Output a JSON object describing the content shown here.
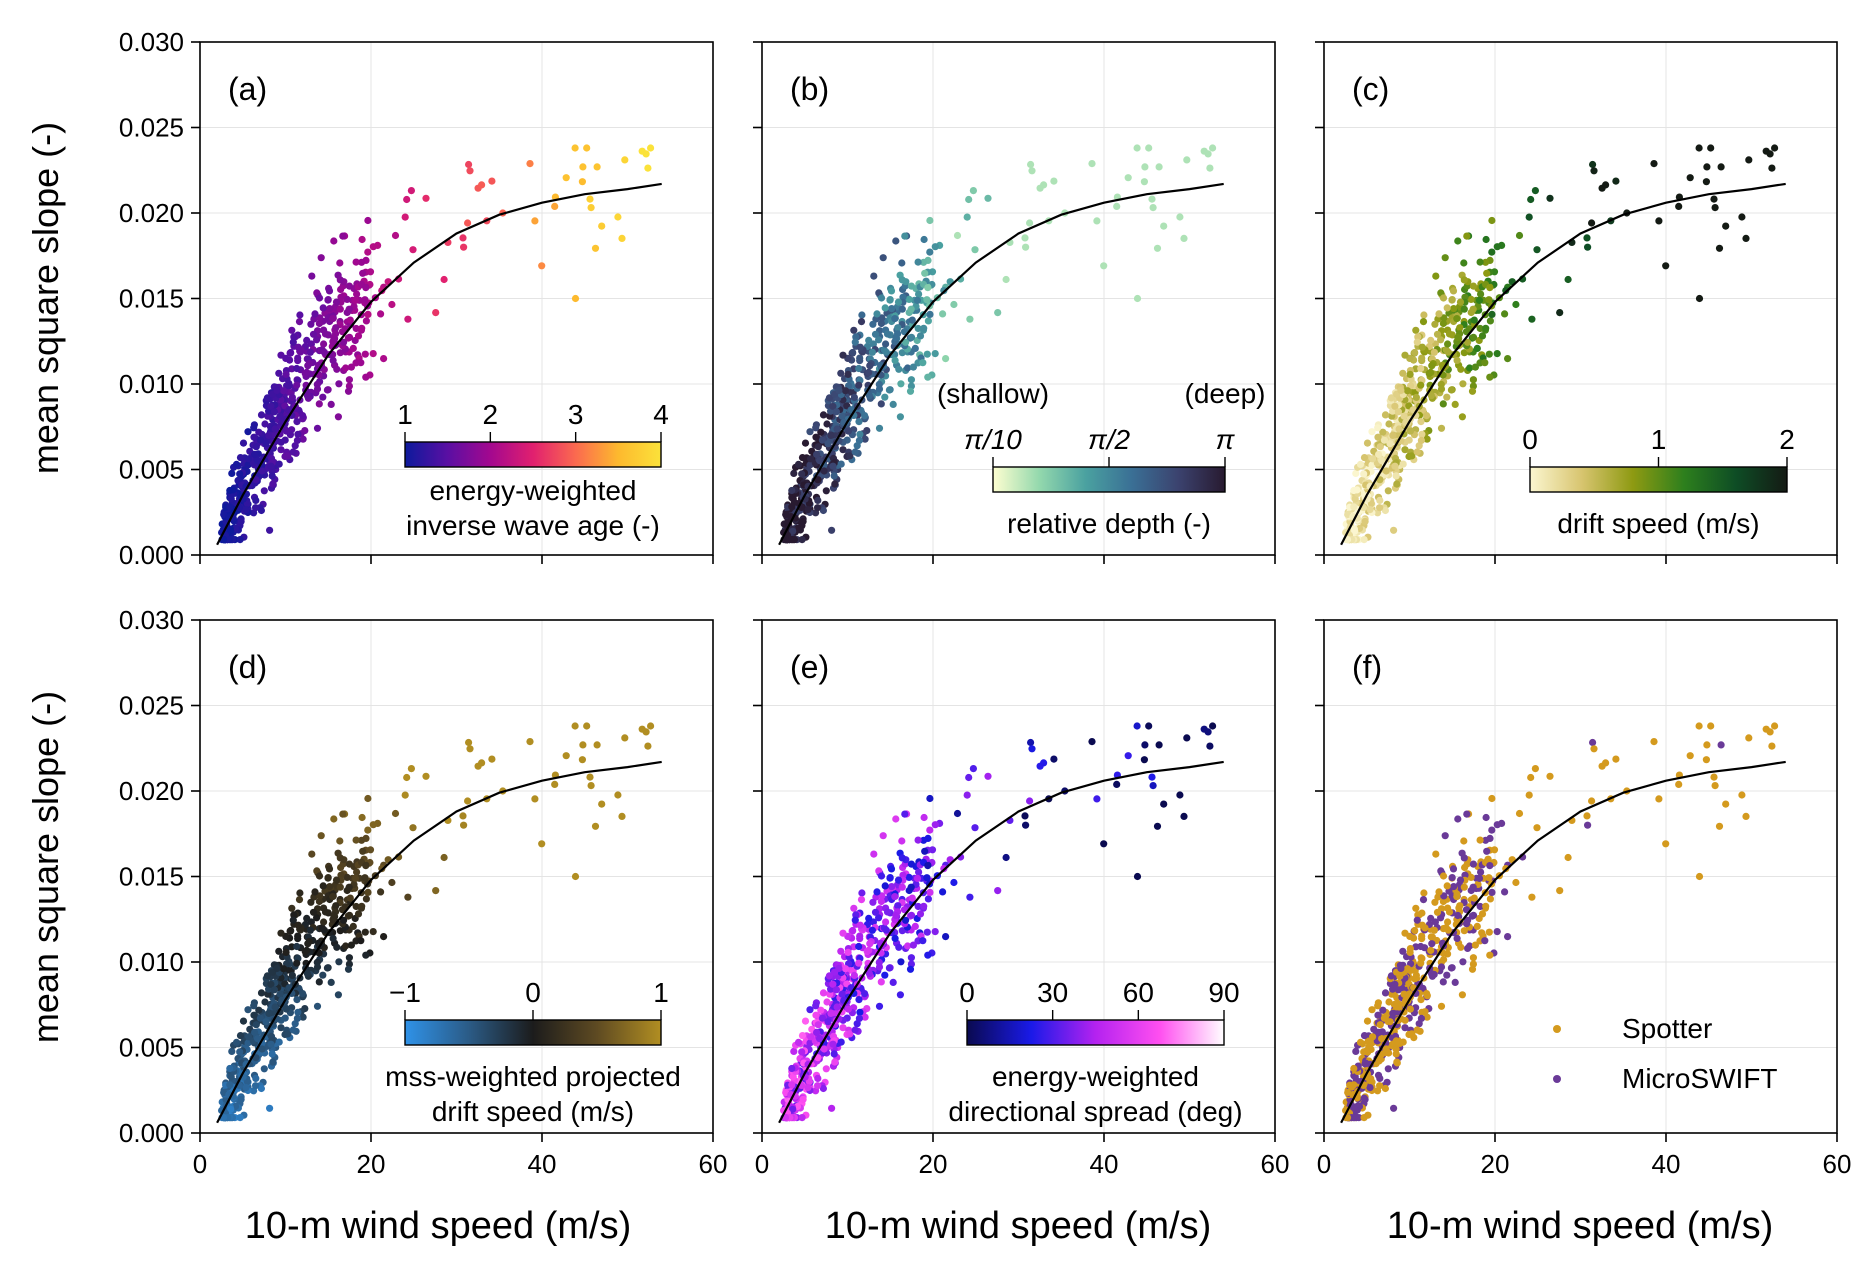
{
  "figure": {
    "ylabel": "mean square slope (-)",
    "xlabel": "10-m wind speed (m/s)",
    "x_ticks": [
      "0",
      "20",
      "40",
      "60"
    ],
    "y_ticks": [
      "0.000",
      "0.005",
      "0.010",
      "0.015",
      "0.020",
      "0.025",
      "0.030"
    ]
  },
  "chart_data": [
    {
      "type": "scatter",
      "panel": "(a)",
      "xlim": [
        0,
        60
      ],
      "ylim": [
        0,
        0.03
      ],
      "grid": true,
      "fit_curve": {
        "x": [
          2,
          5,
          10,
          15,
          20,
          25,
          30,
          35,
          40,
          45,
          50,
          54
        ],
        "y": [
          0.0006,
          0.0035,
          0.0078,
          0.0117,
          0.0148,
          0.0171,
          0.0188,
          0.0199,
          0.0206,
          0.0211,
          0.0214,
          0.0217
        ]
      },
      "colorbar": {
        "label": [
          "energy-weighted",
          "inverse wave age (-)"
        ],
        "ticks": [
          "1",
          "2",
          "3",
          "4"
        ],
        "range": [
          1,
          4
        ],
        "colors": [
          "#0d1a9c",
          "#5a0fa3",
          "#a3088f",
          "#e1206f",
          "#fb6a4f",
          "#fdb92e",
          "#fbe23a"
        ]
      }
    },
    {
      "type": "scatter",
      "panel": "(b)",
      "xlim": [
        0,
        60
      ],
      "ylim": [
        0,
        0.03
      ],
      "grid": true,
      "colorbar": {
        "label": [
          "relative depth (-)"
        ],
        "ticks": [
          "π/10",
          "π/2",
          "π"
        ],
        "end_labels": [
          "(shallow)",
          "(deep)"
        ],
        "colors": [
          "#fefed0",
          "#93d8ad",
          "#4aa1a0",
          "#3a6f95",
          "#3b426e",
          "#281a30"
        ]
      }
    },
    {
      "type": "scatter",
      "panel": "(c)",
      "xlim": [
        0,
        60
      ],
      "ylim": [
        0,
        0.03
      ],
      "grid": true,
      "colorbar": {
        "label": [
          "drift speed (m/s)"
        ],
        "ticks": [
          "0",
          "1",
          "2"
        ],
        "range": [
          0,
          2
        ],
        "colors": [
          "#fbf6d0",
          "#d8c570",
          "#8e9a12",
          "#2d7f1d",
          "#0e4d25",
          "#141a14"
        ]
      }
    },
    {
      "type": "scatter",
      "panel": "(d)",
      "xlim": [
        0,
        60
      ],
      "ylim": [
        0,
        0.03
      ],
      "grid": true,
      "colorbar": {
        "label": [
          "mss-weighted projected",
          "drift speed (m/s)"
        ],
        "ticks": [
          "−1",
          "0",
          "1"
        ],
        "range": [
          -1,
          1
        ],
        "colors": [
          "#2f92e8",
          "#2b5b86",
          "#1c1c1c",
          "#5e4a22",
          "#b18e22"
        ]
      }
    },
    {
      "type": "scatter",
      "panel": "(e)",
      "xlim": [
        0,
        60
      ],
      "ylim": [
        0,
        0.03
      ],
      "grid": true,
      "colorbar": {
        "label": [
          "energy-weighted",
          "directional spread (deg)"
        ],
        "ticks": [
          "0",
          "30",
          "60",
          "90"
        ],
        "range": [
          0,
          90
        ],
        "colors": [
          "#0a0a50",
          "#1a1ae8",
          "#b422f0",
          "#ff4ff0",
          "#ffffff"
        ]
      }
    },
    {
      "type": "scatter",
      "panel": "(f)",
      "xlim": [
        0,
        60
      ],
      "ylim": [
        0,
        0.03
      ],
      "grid": true,
      "legend": {
        "placement": "bottom-right",
        "entries": [
          {
            "name": "Spotter",
            "color": "#d49a1e"
          },
          {
            "name": "MicroSWIFT",
            "color": "#6a3a98"
          }
        ]
      }
    }
  ]
}
